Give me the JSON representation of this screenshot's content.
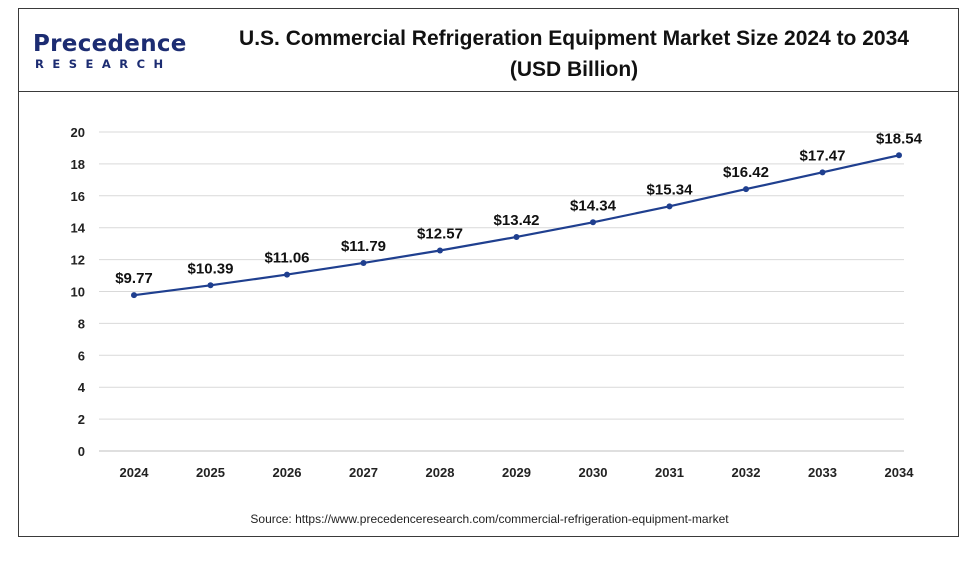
{
  "brand": {
    "name": "Precedence",
    "tagline": "RESEARCH"
  },
  "title_line1": "U.S. Commercial Refrigeration Equipment Market Size 2024 to 2034",
  "title_line2": "(USD Billion)",
  "source": "Source: https://www.precedenceresearch.com/commercial-refrigeration-equipment-market",
  "colors": {
    "line": "#1f3f8f",
    "marker": "#1f3f8f",
    "brand": "#1c2c72",
    "grid": "#d9d9d9"
  },
  "chart_data": {
    "type": "line",
    "title": "U.S. Commercial Refrigeration Equipment Market Size 2024 to 2034 (USD Billion)",
    "categories": [
      "2024",
      "2025",
      "2026",
      "2027",
      "2028",
      "2029",
      "2030",
      "2031",
      "2032",
      "2033",
      "2034"
    ],
    "series": [
      {
        "values": [
          9.77,
          10.39,
          11.06,
          11.79,
          12.57,
          13.42,
          14.34,
          15.34,
          16.42,
          17.47,
          18.54
        ],
        "labels": [
          "$9.77",
          "$10.39",
          "$11.06",
          "$11.79",
          "$12.57",
          "$13.42",
          "$14.34",
          "$15.34",
          "$16.42",
          "$17.47",
          "$18.54"
        ]
      }
    ],
    "yticks": [
      "0",
      "2",
      "4",
      "6",
      "8",
      "10",
      "12",
      "14",
      "16",
      "18",
      "20"
    ],
    "ylim": [
      0,
      20
    ],
    "grid": true,
    "legend": "none"
  }
}
